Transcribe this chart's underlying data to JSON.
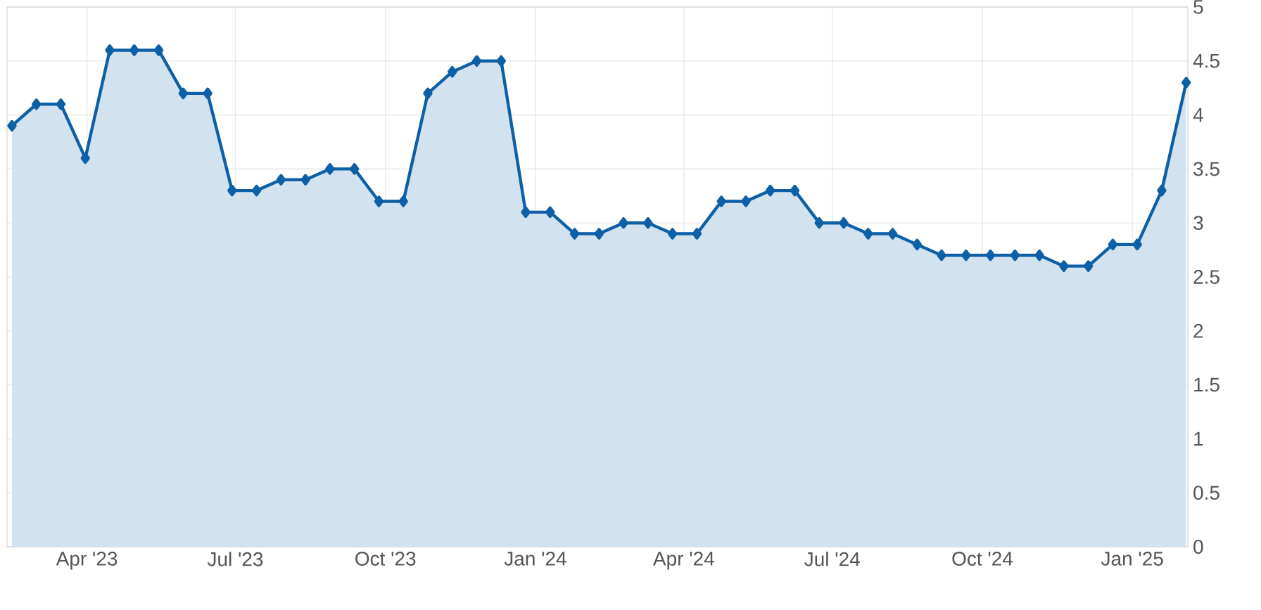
{
  "chart_data": {
    "type": "area",
    "color": "#0d5fa6",
    "marker": "diamond",
    "grid": true,
    "x": [
      "2023-02-14",
      "2023-03-01",
      "2023-03-16",
      "2023-03-31",
      "2023-04-15",
      "2023-04-30",
      "2023-05-15",
      "2023-05-30",
      "2023-06-14",
      "2023-06-29",
      "2023-07-14",
      "2023-07-29",
      "2023-08-13",
      "2023-08-28",
      "2023-09-12",
      "2023-09-27",
      "2023-10-12",
      "2023-10-27",
      "2023-11-11",
      "2023-11-26",
      "2023-12-11",
      "2023-12-26",
      "2024-01-10",
      "2024-01-25",
      "2024-02-09",
      "2024-02-24",
      "2024-03-10",
      "2024-03-25",
      "2024-04-09",
      "2024-04-24",
      "2024-05-09",
      "2024-05-24",
      "2024-06-08",
      "2024-06-23",
      "2024-07-08",
      "2024-07-23",
      "2024-08-07",
      "2024-08-22",
      "2024-09-06",
      "2024-09-21",
      "2024-10-06",
      "2024-10-21",
      "2024-11-05",
      "2024-11-20",
      "2024-12-05",
      "2024-12-20",
      "2025-01-04",
      "2025-01-19",
      "2025-02-03"
    ],
    "values": [
      3.9,
      4.1,
      4.1,
      3.6,
      4.6,
      4.6,
      4.6,
      4.2,
      4.2,
      3.3,
      3.3,
      3.4,
      3.4,
      3.5,
      3.5,
      3.2,
      3.2,
      4.2,
      4.4,
      4.5,
      4.5,
      3.1,
      3.1,
      2.9,
      2.9,
      3.0,
      3.0,
      2.9,
      2.9,
      3.2,
      3.2,
      3.3,
      3.3,
      3.0,
      3.0,
      2.9,
      2.9,
      2.8,
      2.7,
      2.7,
      2.7,
      2.7,
      2.7,
      2.6,
      2.6,
      2.8,
      2.8,
      3.3,
      4.3
    ],
    "xlim": [
      "2023-02-11",
      "2025-02-04"
    ],
    "xticks": [
      {
        "value": "2023-04-01",
        "label": "Apr '23"
      },
      {
        "value": "2023-07-01",
        "label": "Jul '23"
      },
      {
        "value": "2023-10-01",
        "label": "Oct '23"
      },
      {
        "value": "2024-01-01",
        "label": "Jan '24"
      },
      {
        "value": "2024-04-01",
        "label": "Apr '24"
      },
      {
        "value": "2024-07-01",
        "label": "Jul '24"
      },
      {
        "value": "2024-10-01",
        "label": "Oct '24"
      },
      {
        "value": "2025-01-01",
        "label": "Jan '25"
      }
    ],
    "ylim": [
      0,
      5
    ],
    "yticks": [
      0,
      0.5,
      1,
      1.5,
      2,
      2.5,
      3,
      3.5,
      4,
      4.5,
      5
    ]
  }
}
